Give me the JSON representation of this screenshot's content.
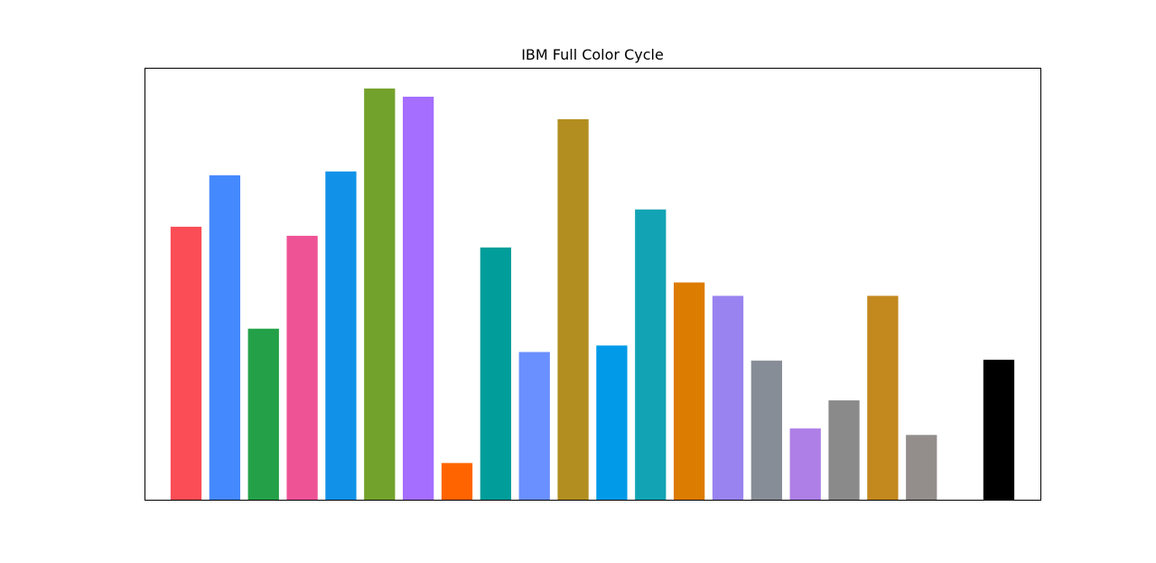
{
  "chart_data": {
    "type": "bar",
    "title": "IBM Full Color Cycle",
    "xlabel": "",
    "ylabel": "",
    "grid": false,
    "axis_ticks": false,
    "ylim": [
      0,
      1.0
    ],
    "bars": [
      {
        "x": 0,
        "value": 0.632,
        "color": "#FA4D56"
      },
      {
        "x": 1,
        "value": 0.751,
        "color": "#4589FF"
      },
      {
        "x": 2,
        "value": 0.396,
        "color": "#24A148"
      },
      {
        "x": 3,
        "value": 0.611,
        "color": "#EE5396"
      },
      {
        "x": 4,
        "value": 0.76,
        "color": "#1192E8"
      },
      {
        "x": 5,
        "value": 0.952,
        "color": "#73A22C"
      },
      {
        "x": 6,
        "value": 0.933,
        "color": "#A56EFF"
      },
      {
        "x": 7,
        "value": 0.085,
        "color": "#FF6400"
      },
      {
        "x": 8,
        "value": 0.584,
        "color": "#009D9A"
      },
      {
        "x": 9,
        "value": 0.342,
        "color": "#6A8FFF"
      },
      {
        "x": 10,
        "value": 0.881,
        "color": "#B28E20"
      },
      {
        "x": 11,
        "value": 0.357,
        "color": "#009AE9"
      },
      {
        "x": 12,
        "value": 0.672,
        "color": "#12A4B4"
      },
      {
        "x": 13,
        "value": 0.503,
        "color": "#DC7C00"
      },
      {
        "x": 14,
        "value": 0.472,
        "color": "#9983F0"
      },
      {
        "x": 15,
        "value": 0.322,
        "color": "#878D96"
      },
      {
        "x": 16,
        "value": 0.165,
        "color": "#AE7FE6"
      },
      {
        "x": 17,
        "value": 0.23,
        "color": "#8A8A8A"
      },
      {
        "x": 18,
        "value": 0.472,
        "color": "#C3881E"
      },
      {
        "x": 19,
        "value": 0.15,
        "color": "#938D8B"
      },
      {
        "x": 21,
        "value": 0.324,
        "color": "#000000"
      }
    ],
    "xlim": [
      -1.074,
      22.074
    ]
  }
}
